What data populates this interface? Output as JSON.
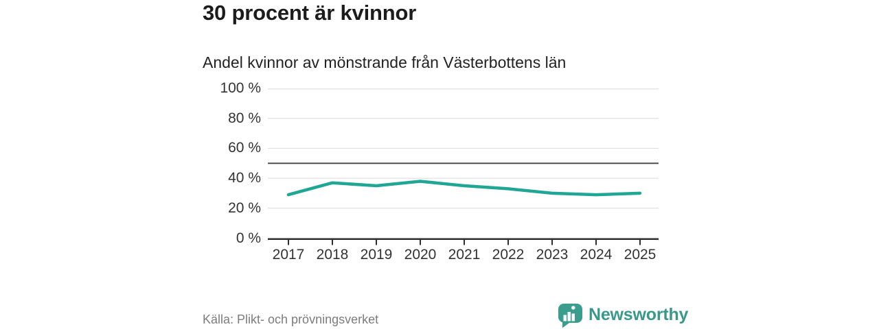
{
  "header": {
    "title": "30 procent är kvinnor",
    "subtitle": "Andel kvinnor av mönstrande från Västerbottens län"
  },
  "chart_data": {
    "type": "line",
    "title": "30 procent är kvinnor",
    "subtitle": "Andel kvinnor av mönstrande från Västerbottens län",
    "x": [
      2017,
      2018,
      2019,
      2020,
      2021,
      2022,
      2023,
      2024,
      2025
    ],
    "series": [
      {
        "name": "Andel kvinnor av mönstrande",
        "values": [
          29,
          37,
          35,
          38,
          35,
          33,
          30,
          29,
          30
        ],
        "color": "#1fa695"
      }
    ],
    "reference_line": {
      "value": 50,
      "color": "#4d4d4d"
    },
    "ylim": [
      0,
      100
    ],
    "yticks": [
      0,
      20,
      40,
      60,
      80,
      100
    ],
    "ytick_suffix": " %",
    "grid": "horizontal",
    "legend": "none"
  },
  "footer": {
    "source": "Källa: Plikt- och prövningsverket",
    "brand": {
      "name": "Newsworthy",
      "color": "#38998b"
    }
  },
  "colors": {
    "line": "#1fa695",
    "grid": "#d9d9d9",
    "axis": "#2e2e2e",
    "reference": "#4d4d4d",
    "title_text": "#1c1c1c",
    "tick_text": "#333333",
    "muted_text": "#7c7c7c",
    "logo_teal": "#3a9d8e"
  }
}
